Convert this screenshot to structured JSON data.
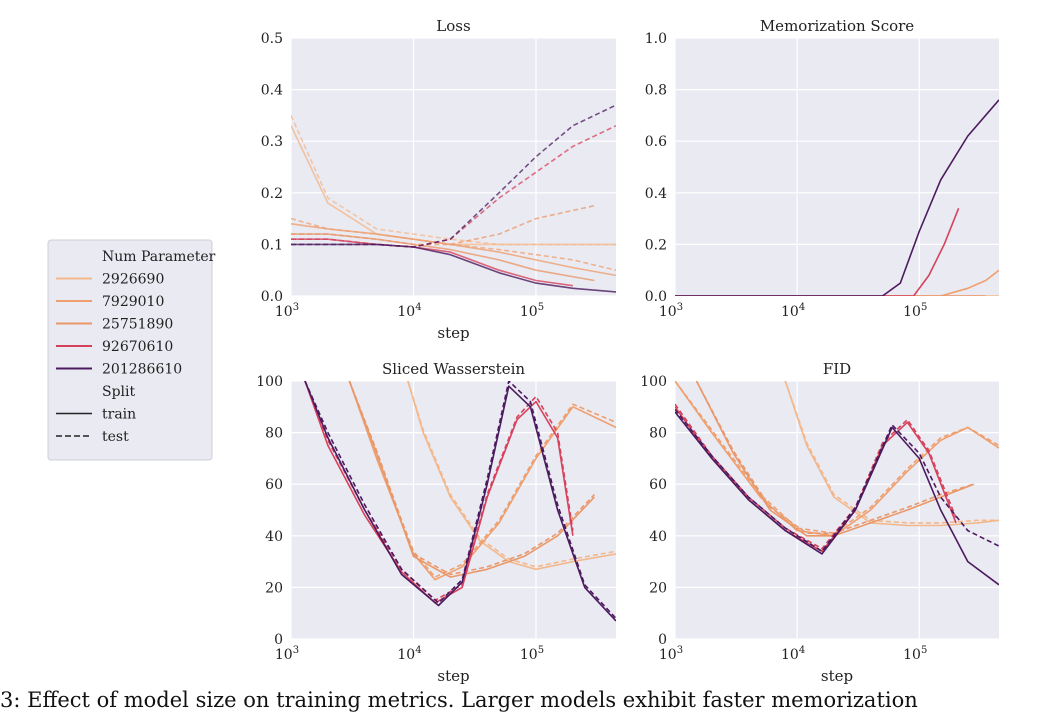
{
  "caption": "3: Effect of model size on training metrics. Larger models exhibit faster memorization",
  "legend": {
    "hue_title": "Num Parameter",
    "entries": [
      {
        "label": "2926690",
        "color": "#f2b88c"
      },
      {
        "label": "7929010",
        "color": "#ef9f6e"
      },
      {
        "label": "25751890",
        "color": "#e9986a"
      },
      {
        "label": "92670610",
        "color": "#d6425c"
      },
      {
        "label": "201286610",
        "color": "#4c1a5e"
      }
    ],
    "style_title": "Split",
    "styles": [
      {
        "label": "train",
        "dash": "solid"
      },
      {
        "label": "test",
        "dash": "dashed"
      }
    ]
  },
  "chart_data": [
    {
      "type": "line",
      "title": "Loss",
      "xlabel": "step",
      "xscale": "log",
      "xlim": [
        1000,
        450000
      ],
      "ylim": [
        0,
        0.5
      ],
      "yticks": [
        "0.0",
        "0.1",
        "0.2",
        "0.3",
        "0.4",
        "0.5"
      ],
      "xticks": [
        "10^3",
        "10^4",
        "10^5"
      ],
      "grid": true,
      "series": [
        {
          "name": "2926690",
          "split": "train",
          "x": [
            1000,
            2000,
            5000,
            10000,
            20000,
            50000,
            100000,
            200000,
            450000
          ],
          "y": [
            0.33,
            0.18,
            0.12,
            0.11,
            0.1,
            0.1,
            0.1,
            0.1,
            0.1
          ]
        },
        {
          "name": "2926690",
          "split": "test",
          "x": [
            1000,
            2000,
            5000,
            10000,
            20000,
            50000,
            100000,
            200000,
            450000
          ],
          "y": [
            0.35,
            0.19,
            0.13,
            0.12,
            0.11,
            0.1,
            0.1,
            0.1,
            0.1
          ]
        },
        {
          "name": "7929010",
          "split": "train",
          "x": [
            1000,
            2000,
            5000,
            10000,
            20000,
            50000,
            100000,
            200000,
            450000
          ],
          "y": [
            0.14,
            0.13,
            0.12,
            0.11,
            0.1,
            0.085,
            0.07,
            0.055,
            0.04
          ]
        },
        {
          "name": "7929010",
          "split": "test",
          "x": [
            1000,
            2000,
            5000,
            10000,
            20000,
            50000,
            100000,
            200000,
            450000
          ],
          "y": [
            0.15,
            0.13,
            0.12,
            0.11,
            0.1,
            0.09,
            0.08,
            0.07,
            0.05
          ]
        },
        {
          "name": "25751890",
          "split": "train",
          "x": [
            1000,
            2000,
            5000,
            10000,
            20000,
            50000,
            100000,
            300000
          ],
          "y": [
            0.12,
            0.12,
            0.11,
            0.1,
            0.09,
            0.07,
            0.05,
            0.03
          ]
        },
        {
          "name": "25751890",
          "split": "test",
          "x": [
            1000,
            2000,
            5000,
            10000,
            20000,
            50000,
            100000,
            300000
          ],
          "y": [
            0.12,
            0.12,
            0.11,
            0.1,
            0.1,
            0.12,
            0.15,
            0.175
          ]
        },
        {
          "name": "92670610",
          "split": "train",
          "x": [
            1000,
            2000,
            5000,
            10000,
            20000,
            50000,
            100000,
            200000
          ],
          "y": [
            0.11,
            0.11,
            0.1,
            0.095,
            0.085,
            0.05,
            0.03,
            0.02
          ]
        },
        {
          "name": "92670610",
          "split": "test",
          "x": [
            1000,
            2000,
            5000,
            10000,
            20000,
            50000,
            100000,
            200000,
            450000
          ],
          "y": [
            0.11,
            0.11,
            0.1,
            0.095,
            0.11,
            0.19,
            0.24,
            0.29,
            0.33
          ]
        },
        {
          "name": "201286610",
          "split": "train",
          "x": [
            1000,
            2000,
            5000,
            10000,
            20000,
            50000,
            100000,
            200000,
            450000
          ],
          "y": [
            0.1,
            0.1,
            0.1,
            0.095,
            0.08,
            0.045,
            0.025,
            0.015,
            0.008
          ]
        },
        {
          "name": "201286610",
          "split": "test",
          "x": [
            1000,
            2000,
            5000,
            10000,
            20000,
            50000,
            100000,
            200000,
            450000
          ],
          "y": [
            0.1,
            0.1,
            0.1,
            0.095,
            0.11,
            0.2,
            0.27,
            0.33,
            0.37
          ]
        }
      ]
    },
    {
      "type": "line",
      "title": "Memorization Score",
      "xlabel": "",
      "xscale": "log",
      "xlim": [
        1000,
        450000
      ],
      "ylim": [
        0,
        1.0
      ],
      "yticks": [
        "0.0",
        "0.2",
        "0.4",
        "0.6",
        "0.8",
        "1.0"
      ],
      "xticks": [
        "10^3",
        "10^4",
        "10^5"
      ],
      "grid": true,
      "series": [
        {
          "name": "2926690",
          "split": "train",
          "x": [
            1000,
            450000
          ],
          "y": [
            0.0,
            0.0
          ]
        },
        {
          "name": "7929010",
          "split": "train",
          "x": [
            1000,
            150000,
            250000,
            350000,
            450000
          ],
          "y": [
            0.0,
            0.0,
            0.03,
            0.06,
            0.1
          ]
        },
        {
          "name": "25751890",
          "split": "train",
          "x": [
            1000,
            350000
          ],
          "y": [
            0.0,
            0.0
          ]
        },
        {
          "name": "92670610",
          "split": "train",
          "x": [
            1000,
            90000,
            120000,
            160000,
            210000
          ],
          "y": [
            0.0,
            0.0,
            0.08,
            0.2,
            0.34
          ]
        },
        {
          "name": "201286610",
          "split": "train",
          "x": [
            1000,
            50000,
            70000,
            100000,
            150000,
            250000,
            450000
          ],
          "y": [
            0.0,
            0.0,
            0.05,
            0.25,
            0.45,
            0.62,
            0.76
          ]
        }
      ]
    },
    {
      "type": "line",
      "title": "Sliced Wasserstein",
      "xlabel": "step",
      "xscale": "log",
      "xlim": [
        1000,
        450000
      ],
      "ylim": [
        0,
        100
      ],
      "yticks": [
        "0",
        "20",
        "40",
        "60",
        "80",
        "100"
      ],
      "xticks": [
        "10^3",
        "10^4",
        "10^5"
      ],
      "grid": true,
      "series": [
        {
          "name": "2926690",
          "split": "train",
          "x": [
            9000,
            12000,
            20000,
            35000,
            60000,
            100000,
            200000,
            450000
          ],
          "y": [
            100,
            80,
            55,
            38,
            30,
            27,
            30,
            33
          ]
        },
        {
          "name": "2926690",
          "split": "test",
          "x": [
            9000,
            12000,
            20000,
            35000,
            60000,
            100000,
            200000,
            450000
          ],
          "y": [
            100,
            81,
            56,
            39,
            31,
            28,
            31,
            34
          ]
        },
        {
          "name": "7929010",
          "split": "train",
          "x": [
            3000,
            5000,
            10000,
            15000,
            25000,
            50000,
            100000,
            200000,
            450000
          ],
          "y": [
            100,
            70,
            33,
            23,
            28,
            45,
            70,
            90,
            82
          ]
        },
        {
          "name": "7929010",
          "split": "test",
          "x": [
            3000,
            5000,
            10000,
            15000,
            25000,
            50000,
            100000,
            200000,
            450000
          ],
          "y": [
            100,
            71,
            34,
            24,
            29,
            46,
            71,
            91,
            84
          ]
        },
        {
          "name": "25751890",
          "split": "train",
          "x": [
            3000,
            5000,
            10000,
            20000,
            40000,
            80000,
            150000,
            300000
          ],
          "y": [
            100,
            72,
            32,
            24,
            27,
            32,
            40,
            55
          ]
        },
        {
          "name": "25751890",
          "split": "test",
          "x": [
            3000,
            5000,
            10000,
            20000,
            40000,
            80000,
            150000,
            300000
          ],
          "y": [
            100,
            73,
            33,
            25,
            28,
            33,
            41,
            56
          ]
        },
        {
          "name": "92670610",
          "split": "train",
          "x": [
            1300,
            2000,
            4000,
            8000,
            15000,
            25000,
            40000,
            70000,
            100000,
            150000,
            200000
          ],
          "y": [
            100,
            75,
            48,
            26,
            14,
            20,
            55,
            85,
            92,
            78,
            40
          ]
        },
        {
          "name": "92670610",
          "split": "test",
          "x": [
            1300,
            2000,
            4000,
            8000,
            15000,
            25000,
            40000,
            70000,
            100000,
            150000,
            200000
          ],
          "y": [
            100,
            77,
            50,
            27,
            15,
            21,
            56,
            86,
            94,
            80,
            42
          ]
        },
        {
          "name": "201286610",
          "split": "train",
          "x": [
            1300,
            2000,
            4000,
            8000,
            16000,
            25000,
            40000,
            60000,
            90000,
            150000,
            250000,
            450000
          ],
          "y": [
            100,
            78,
            50,
            25,
            13,
            22,
            60,
            98,
            90,
            50,
            20,
            7
          ]
        },
        {
          "name": "201286610",
          "split": "test",
          "x": [
            1300,
            2000,
            4000,
            8000,
            16000,
            25000,
            40000,
            60000,
            90000,
            150000,
            250000,
            450000
          ],
          "y": [
            100,
            80,
            52,
            27,
            14,
            23,
            62,
            100,
            92,
            52,
            21,
            8
          ]
        }
      ]
    },
    {
      "type": "line",
      "title": "FID",
      "xlabel": "step",
      "xscale": "log",
      "xlim": [
        1000,
        450000
      ],
      "ylim": [
        0,
        100
      ],
      "yticks": [
        "0",
        "20",
        "40",
        "60",
        "80",
        "100"
      ],
      "xticks": [
        "10^3",
        "10^4",
        "10^5"
      ],
      "grid": true,
      "series": [
        {
          "name": "2926690",
          "split": "train",
          "x": [
            8000,
            12000,
            20000,
            40000,
            80000,
            150000,
            300000,
            450000
          ],
          "y": [
            100,
            75,
            55,
            45,
            44,
            44,
            45,
            46
          ]
        },
        {
          "name": "2926690",
          "split": "test",
          "x": [
            8000,
            12000,
            20000,
            40000,
            80000,
            150000,
            300000,
            450000
          ],
          "y": [
            100,
            76,
            56,
            46,
            45,
            45,
            46,
            46
          ]
        },
        {
          "name": "7929010",
          "split": "train",
          "x": [
            1000,
            2000,
            5000,
            10000,
            20000,
            40000,
            80000,
            150000,
            250000,
            450000
          ],
          "y": [
            100,
            80,
            55,
            42,
            40,
            50,
            65,
            77,
            82,
            74
          ]
        },
        {
          "name": "7929010",
          "split": "test",
          "x": [
            1000,
            2000,
            5000,
            10000,
            20000,
            40000,
            80000,
            150000,
            250000,
            450000
          ],
          "y": [
            100,
            81,
            56,
            43,
            41,
            51,
            66,
            78,
            82,
            75
          ]
        },
        {
          "name": "25751890",
          "split": "train",
          "x": [
            1500,
            3000,
            6000,
            12000,
            20000,
            40000,
            80000,
            150000,
            280000
          ],
          "y": [
            100,
            72,
            50,
            40,
            40,
            45,
            50,
            55,
            60
          ]
        },
        {
          "name": "25751890",
          "split": "test",
          "x": [
            1500,
            3000,
            6000,
            12000,
            20000,
            40000,
            80000,
            150000,
            280000
          ],
          "y": [
            100,
            73,
            51,
            41,
            41,
            46,
            51,
            56,
            60
          ]
        },
        {
          "name": "92670610",
          "split": "train",
          "x": [
            1000,
            2000,
            4000,
            8000,
            16000,
            30000,
            50000,
            80000,
            120000,
            200000
          ],
          "y": [
            90,
            70,
            54,
            42,
            34,
            50,
            75,
            84,
            72,
            45
          ]
        },
        {
          "name": "92670610",
          "split": "test",
          "x": [
            1000,
            2000,
            4000,
            8000,
            16000,
            30000,
            50000,
            80000,
            120000,
            200000
          ],
          "y": [
            91,
            71,
            55,
            43,
            35,
            51,
            76,
            85,
            73,
            47
          ]
        },
        {
          "name": "201286610",
          "split": "train",
          "x": [
            1000,
            2000,
            4000,
            8000,
            16000,
            30000,
            60000,
            100000,
            150000,
            250000,
            450000
          ],
          "y": [
            88,
            70,
            54,
            42,
            33,
            50,
            82,
            70,
            50,
            30,
            21
          ]
        },
        {
          "name": "201286610",
          "split": "test",
          "x": [
            1000,
            2000,
            4000,
            8000,
            16000,
            30000,
            60000,
            100000,
            150000,
            250000,
            450000
          ],
          "y": [
            89,
            71,
            55,
            43,
            34,
            51,
            83,
            72,
            55,
            42,
            36
          ]
        }
      ]
    }
  ]
}
